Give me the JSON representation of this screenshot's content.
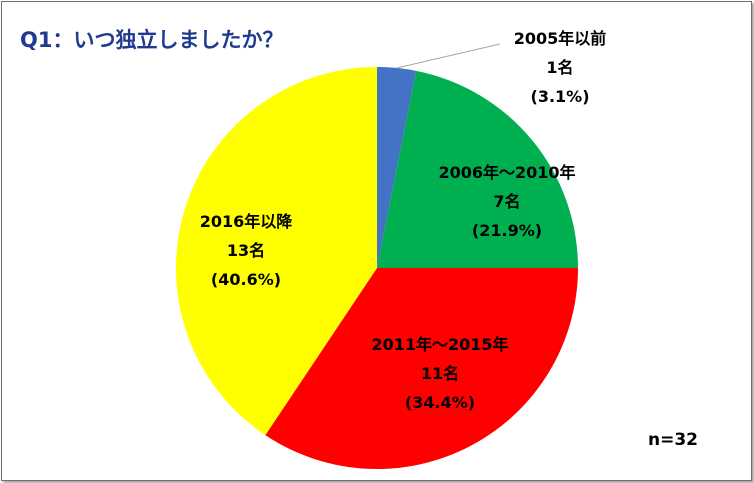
{
  "title": "Q1：いつ独立しましたか？",
  "sample_size": "n=32",
  "chart_data": {
    "type": "pie",
    "title": "Q1：いつ独立しましたか？",
    "categories": [
      "2005年以前",
      "2006年～2010年",
      "2011年～2015年",
      "2016年以降"
    ],
    "values": [
      1,
      7,
      11,
      13
    ],
    "count_labels": [
      "1名",
      "7名",
      "11名",
      "13名"
    ],
    "percent_labels": [
      "(3.1%)",
      "(21.9%)",
      "(34.4%)",
      "(40.6%)"
    ],
    "percentages": [
      3.1,
      21.9,
      34.4,
      40.6
    ],
    "colors": [
      "#4472c4",
      "#00b050",
      "#ff0000",
      "#ffff00"
    ],
    "total": 32,
    "legend": "none"
  }
}
